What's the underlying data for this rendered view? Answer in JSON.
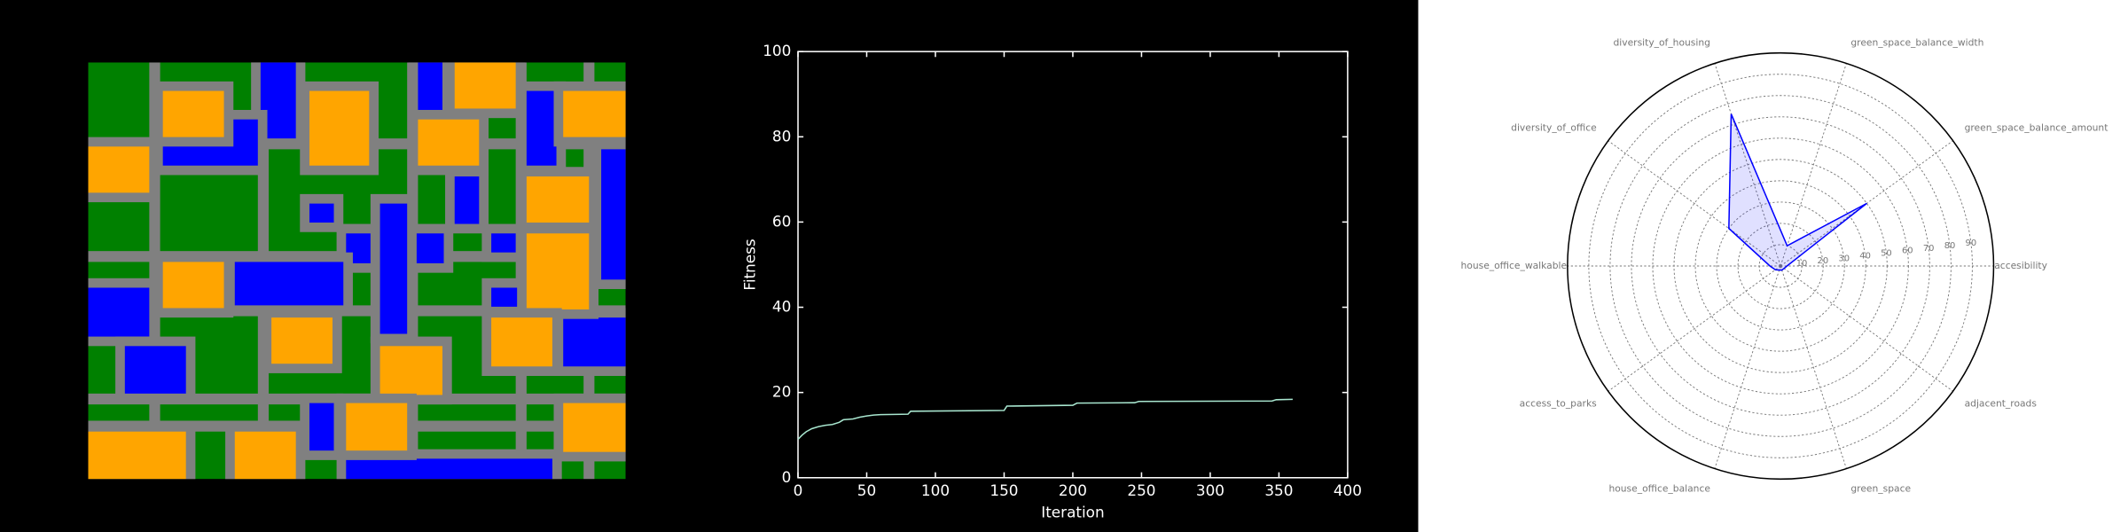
{
  "chart_data": [
    {
      "type": "line",
      "x_label": "Iteration",
      "y_label": "Fitness",
      "xlim": [
        0,
        400
      ],
      "xticks": [
        0,
        50,
        100,
        150,
        200,
        250,
        300,
        350,
        400
      ],
      "ylim": [
        0,
        100
      ],
      "yticks": [
        0,
        20,
        40,
        60,
        80,
        100
      ],
      "series": [
        {
          "color": "#a8e6cf",
          "x": [
            0,
            3,
            6,
            10,
            15,
            20,
            25,
            30,
            33,
            40,
            45,
            50,
            55,
            60,
            80,
            82,
            150,
            152,
            200,
            203,
            245,
            248,
            345,
            348,
            360
          ],
          "values": [
            9,
            10,
            10.8,
            11.5,
            12,
            12.3,
            12.5,
            13,
            13.6,
            13.8,
            14.2,
            14.5,
            14.7,
            14.8,
            14.9,
            15.6,
            15.8,
            16.8,
            17,
            17.5,
            17.6,
            17.9,
            18,
            18.3,
            18.4
          ]
        }
      ]
    },
    {
      "type": "radar",
      "categories": [
        "accesibility",
        "green_space_balance_amount",
        "green_space_balance_width",
        "diversity_of_housing",
        "diversity_of_office",
        "house_office_walkable",
        "access_to_parks",
        "house_office_balance",
        "green_space",
        "adjacent_roads"
      ],
      "rlim": [
        0,
        100
      ],
      "rticks": [
        10,
        20,
        30,
        40,
        50,
        60,
        70,
        80,
        90
      ],
      "series": [
        {
          "color": "#0000ff",
          "fill": "#0000ff",
          "values": [
            3,
            50,
            10,
            75,
            30,
            5,
            3,
            2,
            2,
            2
          ]
        }
      ]
    }
  ]
}
